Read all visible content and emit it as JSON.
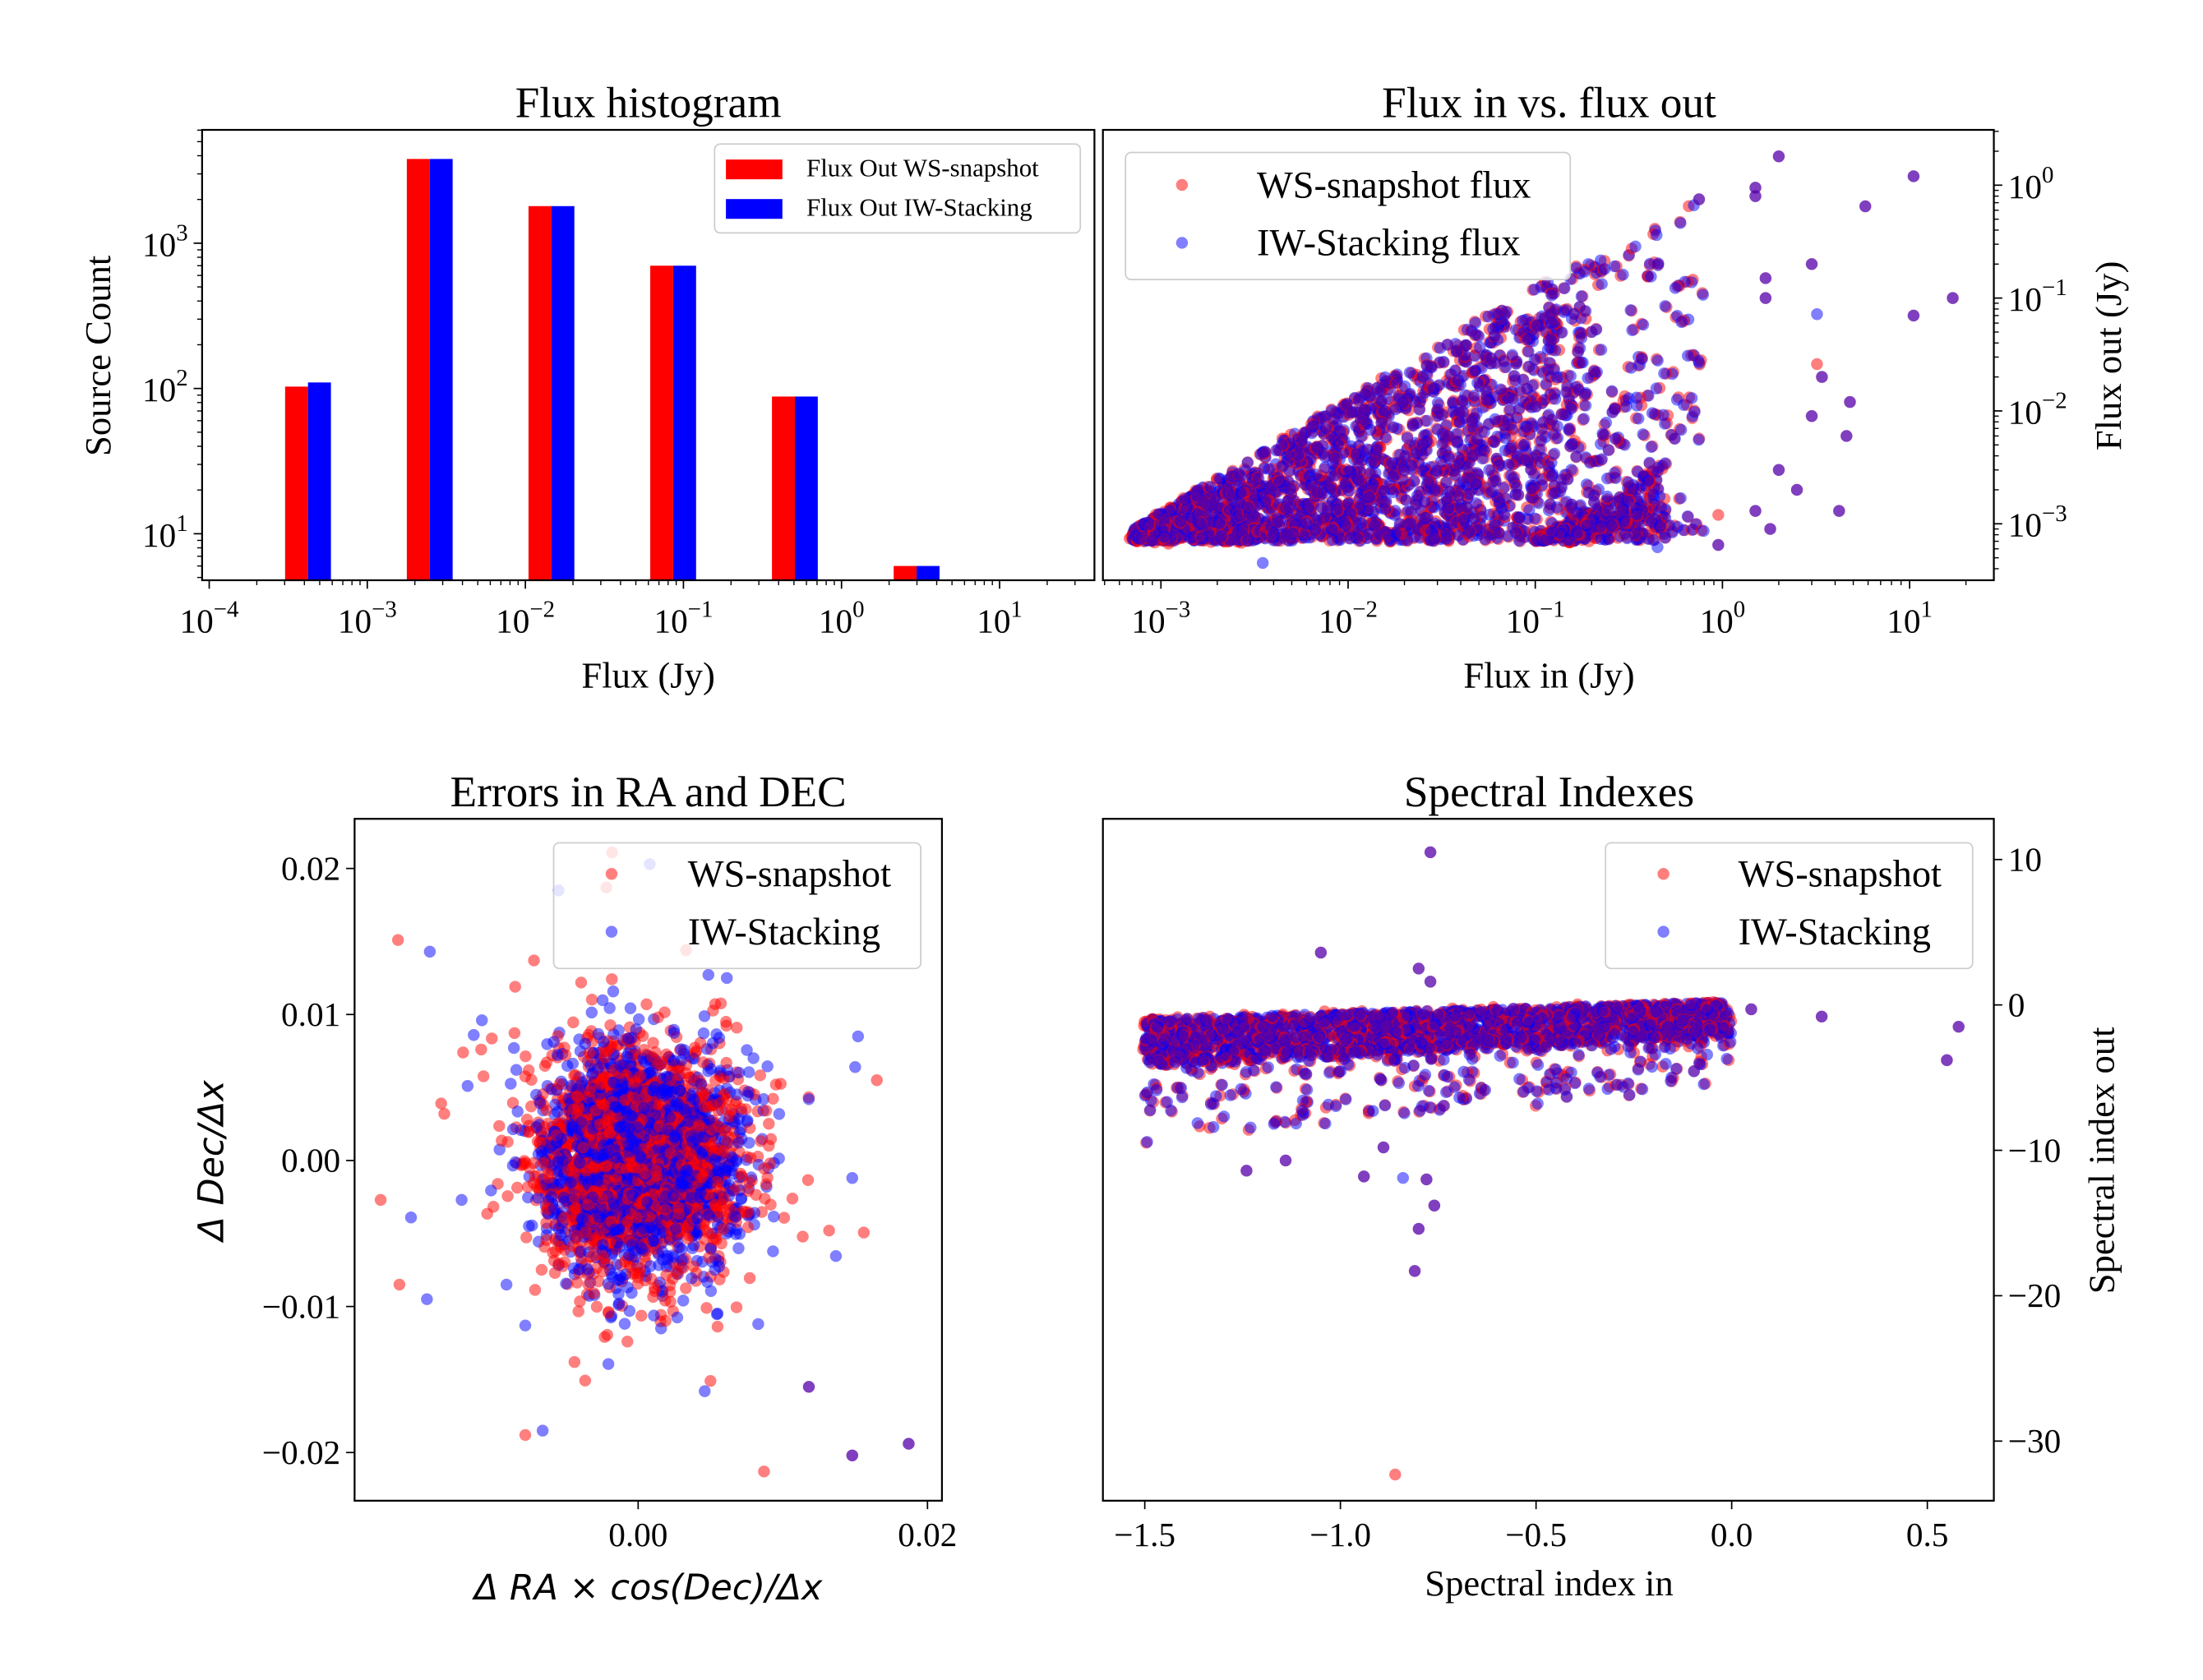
{
  "colors": {
    "ws": "#ff0000",
    "iw": "#0000ff",
    "axis": "#000000",
    "legend_border": "#cccccc"
  },
  "chart_data": [
    {
      "type": "bar",
      "title": "Flux histogram",
      "xlabel": "Flux (Jy)",
      "ylabel": "Source Count",
      "xscale": "log",
      "yscale": "log",
      "xlim_log10": [
        -4.045,
        1.6
      ],
      "ylim_log10": [
        0.68,
        3.78
      ],
      "xticks": [
        {
          "base": "10",
          "exp": "−4",
          "v": -4
        },
        {
          "base": "10",
          "exp": "−3",
          "v": -3
        },
        {
          "base": "10",
          "exp": "−2",
          "v": -2
        },
        {
          "base": "10",
          "exp": "−1",
          "v": -1
        },
        {
          "base": "10",
          "exp": "0",
          "v": 0
        },
        {
          "base": "10",
          "exp": "1",
          "v": 1
        }
      ],
      "yticks": [
        {
          "base": "10",
          "exp": "1",
          "v": 1
        },
        {
          "base": "10",
          "exp": "2",
          "v": 2
        },
        {
          "base": "10",
          "exp": "3",
          "v": 3
        }
      ],
      "legend": {
        "placement": "upper right",
        "entries": [
          "Flux Out WS-snapshot",
          "Flux Out IW-Stacking"
        ]
      },
      "bins": [
        {
          "flux_left_log10": -3.52,
          "flux_right_log10": -3.23,
          "ws": 103,
          "iw": 110
        },
        {
          "flux_left_log10": -2.75,
          "flux_right_log10": -2.46,
          "ws": 3800,
          "iw": 3800
        },
        {
          "flux_left_log10": -1.98,
          "flux_right_log10": -1.69,
          "ws": 1800,
          "iw": 1800
        },
        {
          "flux_left_log10": -1.21,
          "flux_right_log10": -0.92,
          "ws": 700,
          "iw": 700
        },
        {
          "flux_left_log10": -0.44,
          "flux_right_log10": -0.15,
          "ws": 88,
          "iw": 88
        },
        {
          "flux_left_log10": 0.33,
          "flux_right_log10": 0.62,
          "ws": 6,
          "iw": 6
        }
      ]
    },
    {
      "type": "scatter",
      "title": "Flux in vs. flux out",
      "xlabel": "Flux in (Jy)",
      "ylabel": "Flux out (Jy)",
      "xscale": "log",
      "yscale": "log",
      "xlim_log10": [
        -3.31,
        1.45
      ],
      "ylim_log10": [
        -3.5,
        0.49
      ],
      "xticks": [
        {
          "base": "10",
          "exp": "−3",
          "v": -3
        },
        {
          "base": "10",
          "exp": "−2",
          "v": -2
        },
        {
          "base": "10",
          "exp": "−1",
          "v": -1
        },
        {
          "base": "10",
          "exp": "0",
          "v": 0
        },
        {
          "base": "10",
          "exp": "1",
          "v": 1
        }
      ],
      "yticks": [
        {
          "base": "10",
          "exp": "−3",
          "v": -3
        },
        {
          "base": "10",
          "exp": "−2",
          "v": -2
        },
        {
          "base": "10",
          "exp": "−1",
          "v": -1
        },
        {
          "base": "10",
          "exp": "0",
          "v": 0
        }
      ],
      "legend": {
        "placement": "upper left",
        "entries": [
          "WS-snapshot flux",
          "IW-Stacking flux"
        ]
      },
      "dense_regions": [
        {
          "kind": "wedge",
          "log_x": [
            -3.15,
            -0.92
          ],
          "log_y_floor": -3.15,
          "upper": "log_y <= log_x + 0.1",
          "count": 1500
        },
        {
          "kind": "wedge2",
          "log_x": [
            -1.0,
            -0.3
          ],
          "log_y_floor": -3.15,
          "upper": "log_y <= -3.15 + (log_x + 1.0)",
          "count": 260
        },
        {
          "kind": "sparse",
          "log_x": [
            -0.92,
            -0.1
          ],
          "log_y_floor": -3.1,
          "upper": "log_y <= log_x + 0.05",
          "count": 230
        }
      ],
      "outliers": [
        {
          "x": 2.0,
          "y": 1.8,
          "s": "both"
        },
        {
          "x": 10.5,
          "y": 1.2,
          "s": "both"
        },
        {
          "x": 5.8,
          "y": 0.65,
          "s": "both"
        },
        {
          "x": 0.75,
          "y": 0.75,
          "s": "both"
        },
        {
          "x": 1.5,
          "y": 0.95,
          "s": "both"
        },
        {
          "x": 1.5,
          "y": 0.8,
          "s": "both"
        },
        {
          "x": 3.0,
          "y": 0.2,
          "s": "both"
        },
        {
          "x": 1.7,
          "y": 0.15,
          "s": "both"
        },
        {
          "x": 1.7,
          "y": 0.1,
          "s": "both"
        },
        {
          "x": 10.5,
          "y": 0.07,
          "s": "both"
        },
        {
          "x": 17,
          "y": 0.1,
          "s": "both"
        },
        {
          "x": 3.2,
          "y": 0.072,
          "s": "iw"
        },
        {
          "x": 3.2,
          "y": 0.026,
          "s": "ws"
        },
        {
          "x": 3.4,
          "y": 0.02,
          "s": "both"
        },
        {
          "x": 4.8,
          "y": 0.012,
          "s": "both"
        },
        {
          "x": 4.6,
          "y": 0.006,
          "s": "both"
        },
        {
          "x": 3.0,
          "y": 0.009,
          "s": "both"
        },
        {
          "x": 2.0,
          "y": 0.003,
          "s": "both"
        },
        {
          "x": 4.2,
          "y": 0.0013,
          "s": "both"
        },
        {
          "x": 1.8,
          "y": 0.0009,
          "s": "both"
        },
        {
          "x": 0.95,
          "y": 0.0012,
          "s": "ws"
        },
        {
          "x": 0.45,
          "y": 0.00062,
          "s": "iw"
        },
        {
          "x": 0.0035,
          "y": 0.00045,
          "s": "iw"
        },
        {
          "x": 0.95,
          "y": 0.00065,
          "s": "both"
        },
        {
          "x": 1.5,
          "y": 0.0013,
          "s": "both"
        },
        {
          "x": 2.5,
          "y": 0.002,
          "s": "both"
        }
      ]
    },
    {
      "type": "scatter",
      "title": "Errors in RA and DEC",
      "xlabel": "Δ RA × cos(Dec)/Δx",
      "ylabel": "Δ Dec/Δx",
      "xscale": "linear",
      "yscale": "linear",
      "xlim": [
        -0.0196,
        0.021
      ],
      "ylim": [
        -0.0233,
        0.0234
      ],
      "xticks": [
        {
          "label": "0.00",
          "v": 0
        },
        {
          "label": "0.02",
          "v": 0.02
        }
      ],
      "yticks": [
        {
          "label": "−0.02",
          "v": -0.02
        },
        {
          "label": "−0.01",
          "v": -0.01
        },
        {
          "label": "0.00",
          "v": 0
        },
        {
          "label": "0.01",
          "v": 0.01
        },
        {
          "label": "0.02",
          "v": 0.02
        }
      ],
      "legend": {
        "placement": "upper right",
        "entries": [
          "WS-snapshot",
          "IW-Stacking"
        ]
      },
      "dense_regions": [
        {
          "kind": "gaussian",
          "center": [
            0,
            0
          ],
          "sigma": [
            0.0035,
            0.0037
          ],
          "count": 1800
        }
      ],
      "outliers": [
        {
          "x": -0.0166,
          "y": 0.0151,
          "s": "ws"
        },
        {
          "x": -0.0144,
          "y": 0.0143,
          "s": "iw"
        },
        {
          "x": -0.0178,
          "y": -0.0027,
          "s": "ws"
        },
        {
          "x": -0.0165,
          "y": -0.0085,
          "s": "ws"
        },
        {
          "x": -0.0157,
          "y": -0.0039,
          "s": "iw"
        },
        {
          "x": -0.0146,
          "y": -0.0095,
          "s": "iw"
        },
        {
          "x": 0.0165,
          "y": 0.0055,
          "s": "ws"
        },
        {
          "x": 0.0152,
          "y": 0.0085,
          "s": "iw"
        },
        {
          "x": 0.015,
          "y": 0.0064,
          "s": "iw"
        },
        {
          "x": 0.0148,
          "y": -0.0012,
          "s": "iw"
        },
        {
          "x": 0.0187,
          "y": -0.0194,
          "s": "both"
        },
        {
          "x": 0.0148,
          "y": -0.0202,
          "s": "both"
        },
        {
          "x": 0.0087,
          "y": -0.0213,
          "s": "ws"
        },
        {
          "x": -0.0078,
          "y": -0.0188,
          "s": "ws"
        },
        {
          "x": -0.0066,
          "y": -0.0185,
          "s": "iw"
        },
        {
          "x": 0.0118,
          "y": -0.0155,
          "s": "both"
        },
        {
          "x": 0.0046,
          "y": -0.0158,
          "s": "iw"
        },
        {
          "x": 0.005,
          "y": -0.0151,
          "s": "ws"
        },
        {
          "x": -0.0044,
          "y": -0.0138,
          "s": "ws"
        },
        {
          "x": 0.0083,
          "y": -0.0112,
          "s": "iw"
        },
        {
          "x": -0.0091,
          "y": -0.0085,
          "s": "iw"
        },
        {
          "x": -0.0078,
          "y": -0.0113,
          "s": "iw"
        },
        {
          "x": -0.0018,
          "y": 0.0211,
          "s": "ws"
        },
        {
          "x": 0.0008,
          "y": 0.0203,
          "s": "iw"
        },
        {
          "x": -0.0022,
          "y": 0.0187,
          "s": "ws"
        },
        {
          "x": -0.0055,
          "y": 0.0185,
          "s": "iw"
        },
        {
          "x": -0.0072,
          "y": 0.0137,
          "s": "ws"
        },
        {
          "x": -0.0085,
          "y": 0.0119,
          "s": "ws"
        },
        {
          "x": -0.0108,
          "y": 0.0096,
          "s": "iw"
        },
        {
          "x": -0.0134,
          "y": 0.0032,
          "s": "ws"
        },
        {
          "x": 0.0056,
          "y": 0.0084,
          "s": "iw"
        },
        {
          "x": -0.0121,
          "y": 0.0074,
          "s": "ws"
        },
        {
          "x": -0.0122,
          "y": -0.0027,
          "s": "iw"
        },
        {
          "x": 0.0118,
          "y": 0.0042,
          "s": "iw"
        },
        {
          "x": 0.0132,
          "y": -0.0048,
          "s": "ws"
        }
      ]
    },
    {
      "type": "scatter",
      "title": "Spectral Indexes",
      "xlabel": "Spectral index in",
      "ylabel": "Spectral index out",
      "xscale": "linear",
      "yscale": "linear",
      "xlim": [
        -1.607,
        0.67
      ],
      "ylim": [
        -34.1,
        12.8
      ],
      "xticks": [
        {
          "label": "−1.5",
          "v": -1.5
        },
        {
          "label": "−1.0",
          "v": -1.0
        },
        {
          "label": "−0.5",
          "v": -0.5
        },
        {
          "label": "0.0",
          "v": 0
        },
        {
          "label": "0.5",
          "v": 0.5
        }
      ],
      "yticks": [
        {
          "label": "−30",
          "v": -30
        },
        {
          "label": "−20",
          "v": -20
        },
        {
          "label": "−10",
          "v": -10
        },
        {
          "label": "0",
          "v": 0
        },
        {
          "label": "10",
          "v": 10
        }
      ],
      "legend": {
        "placement": "upper right",
        "entries": [
          "WS-snapshot",
          "IW-Stacking"
        ]
      },
      "dense_regions": [
        {
          "kind": "band",
          "x": [
            -1.5,
            0.0
          ],
          "y_top": [
            -1.0,
            0.2
          ],
          "y_core_bottom": [
            -4.2,
            -2.2
          ],
          "count": 1500
        },
        {
          "kind": "band_tail",
          "x": [
            -1.5,
            0.0
          ],
          "y_top": [
            -3.5,
            -1.5
          ],
          "y_bottom": [
            -9.5,
            -5.5
          ],
          "count": 220
        }
      ],
      "outliers": [
        {
          "x": -0.77,
          "y": 10.5,
          "s": "both"
        },
        {
          "x": -1.05,
          "y": 3.6,
          "s": "both"
        },
        {
          "x": -0.8,
          "y": 2.5,
          "s": "both"
        },
        {
          "x": -0.77,
          "y": 1.6,
          "s": "both"
        },
        {
          "x": 0.23,
          "y": -0.8,
          "s": "both"
        },
        {
          "x": 0.58,
          "y": -1.5,
          "s": "both"
        },
        {
          "x": 0.55,
          "y": -3.8,
          "s": "both"
        },
        {
          "x": 0.05,
          "y": -0.3,
          "s": "both"
        },
        {
          "x": -0.86,
          "y": -32.3,
          "s": "ws"
        },
        {
          "x": -0.84,
          "y": -11.9,
          "s": "iw"
        },
        {
          "x": -0.8,
          "y": -15.4,
          "s": "both"
        },
        {
          "x": -0.81,
          "y": -18.3,
          "s": "both"
        },
        {
          "x": -0.76,
          "y": -13.8,
          "s": "both"
        },
        {
          "x": -0.78,
          "y": -12.0,
          "s": "both"
        },
        {
          "x": -1.24,
          "y": -11.4,
          "s": "both"
        },
        {
          "x": -1.14,
          "y": -10.7,
          "s": "both"
        },
        {
          "x": -0.94,
          "y": -11.8,
          "s": "both"
        },
        {
          "x": -0.89,
          "y": -9.8,
          "s": "both"
        }
      ]
    }
  ]
}
